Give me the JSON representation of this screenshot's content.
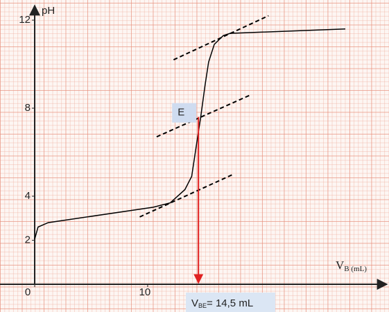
{
  "chart_data": {
    "type": "line",
    "y_label": "pH",
    "x_label": {
      "symbol": "V",
      "subscript": "B (mL)"
    },
    "xlim": [
      0,
      31
    ],
    "ylim": [
      0,
      12.6
    ],
    "xticks": [
      0,
      10
    ],
    "yticks": [
      2,
      4,
      8,
      12
    ],
    "series": [
      {
        "color": "#000000",
        "dashed": false,
        "x": [
          0,
          0.3,
          1.2,
          10.5,
          12,
          13.3,
          13.9,
          14.4,
          14.7,
          15.1,
          15.4,
          15.9,
          16.7,
          17.3,
          27.5
        ],
        "values": [
          2.05,
          2.6,
          2.8,
          3.5,
          3.7,
          4.3,
          4.9,
          6.6,
          7.6,
          9.1,
          10.1,
          10.9,
          11.3,
          11.4,
          11.6
        ]
      },
      {
        "color": "#000000",
        "dashed": true,
        "x": [
          9.3,
          17.6
        ],
        "values": [
          3.06,
          5.0
        ]
      },
      {
        "color": "#000000",
        "dashed": true,
        "x": [
          10.8,
          19.1
        ],
        "values": [
          6.7,
          8.6
        ]
      },
      {
        "color": "#000000",
        "dashed": true,
        "x": [
          12.3,
          20.7
        ],
        "values": [
          10.2,
          12.2
        ]
      }
    ],
    "equivalence": {
      "label": "E",
      "x": 14.5,
      "y": 7.6,
      "color": "#e02020"
    },
    "result": {
      "symbol": "V",
      "subscript": "BE",
      "text": "= 14,5 mL"
    }
  }
}
